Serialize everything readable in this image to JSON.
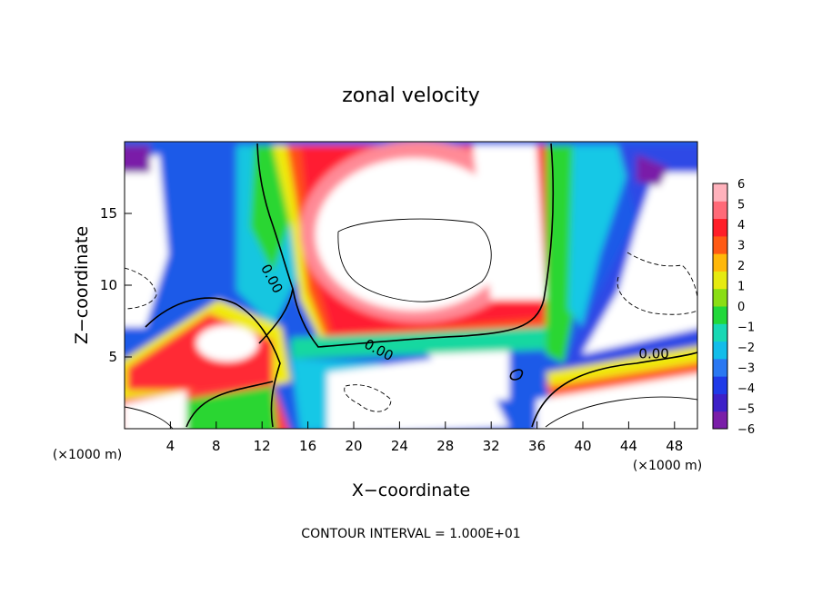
{
  "chart_data": {
    "type": "heatmap",
    "title": "zonal velocity",
    "xlabel": "X−coordinate",
    "ylabel": "Z−coordinate",
    "x_unit_left": "(×1000 m)",
    "x_unit_right": "(×1000 m)",
    "xlim": [
      0,
      50
    ],
    "ylim": [
      0,
      20
    ],
    "x_ticks": [
      {
        "v": 4,
        "label": "4"
      },
      {
        "v": 8,
        "label": "8"
      },
      {
        "v": 12,
        "label": "12"
      },
      {
        "v": 16,
        "label": "16"
      },
      {
        "v": 20,
        "label": "20"
      },
      {
        "v": 24,
        "label": "24"
      },
      {
        "v": 28,
        "label": "28"
      },
      {
        "v": 32,
        "label": "32"
      },
      {
        "v": 36,
        "label": "36"
      },
      {
        "v": 40,
        "label": "40"
      },
      {
        "v": 44,
        "label": "44"
      },
      {
        "v": 48,
        "label": "48"
      }
    ],
    "y_ticks": [
      {
        "v": 5,
        "label": "5"
      },
      {
        "v": 10,
        "label": "10"
      },
      {
        "v": 15,
        "label": "15"
      }
    ],
    "contour_labels": [
      {
        "x": 12.5,
        "y": 10.3,
        "text": "0.00",
        "angle": 62
      },
      {
        "x": 22.0,
        "y": 5.2,
        "text": "0.00",
        "angle": 28
      },
      {
        "x": 46.2,
        "y": 4.9,
        "text": "0.00",
        "angle": 0
      }
    ],
    "colorbar": {
      "min": -6,
      "max": 6,
      "ticks": [
        "6",
        "5",
        "4",
        "3",
        "2",
        "1",
        "0",
        "−1",
        "−2",
        "−3",
        "−4",
        "−5",
        "−6"
      ],
      "colors": [
        "#7a1ea8",
        "#3d20c8",
        "#1f3ae8",
        "#2a78f2",
        "#12bdea",
        "#18d8b4",
        "#22d83a",
        "#8ade14",
        "#e6ea10",
        "#ffb80a",
        "#ff5a14",
        "#ff1e28",
        "#ff6a78",
        "#ffb2bc"
      ]
    },
    "footnote": "CONTOUR INTERVAL = 1.000E+01"
  }
}
